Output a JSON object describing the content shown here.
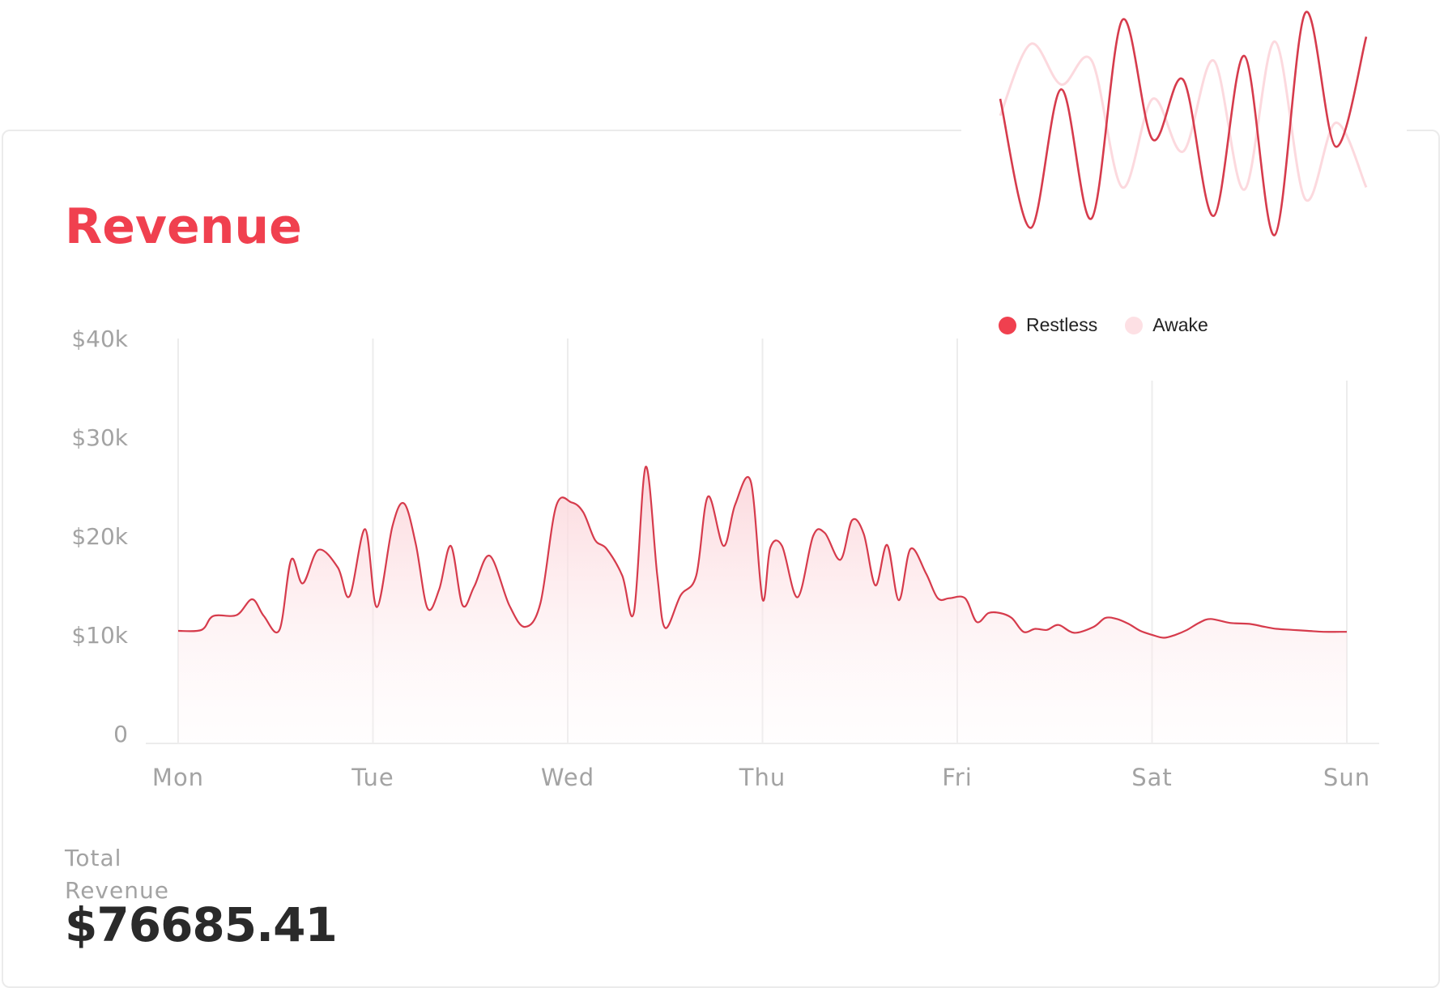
{
  "card": {
    "title": "Revenue"
  },
  "summary": {
    "label": "Total Revenue",
    "value": "$76685.41"
  },
  "colors": {
    "accent": "#f0404f",
    "line": "#d63b4c",
    "fill": "#fbd3d8",
    "awake": "#fcdde1",
    "grid": "#ececec",
    "text_muted": "#a3a3a3"
  },
  "sleep_chart": {
    "type": "line",
    "legend": [
      {
        "name": "Restless",
        "color": "#f0404f"
      },
      {
        "name": "Awake",
        "color": "#fde0e4"
      }
    ],
    "series": [
      {
        "name": "Restless",
        "values": [
          0.62,
          0.08,
          0.66,
          0.12,
          0.95,
          0.45,
          0.7,
          0.13,
          0.8,
          0.05,
          0.98,
          0.42,
          0.88
        ]
      },
      {
        "name": "Awake",
        "values": [
          0.55,
          0.85,
          0.68,
          0.78,
          0.25,
          0.62,
          0.4,
          0.78,
          0.24,
          0.86,
          0.2,
          0.52,
          0.25
        ]
      }
    ]
  },
  "chart_data": {
    "type": "area",
    "title": "Revenue",
    "xlabel": "",
    "ylabel": "",
    "x_labels": [
      "Mon",
      "Tue",
      "Wed",
      "Thu",
      "Fri",
      "Sat",
      "Sun"
    ],
    "y_ticks": [
      "$40k",
      "$30k",
      "$20k",
      "$10k",
      "0"
    ],
    "ylim": [
      0,
      41000
    ],
    "grid": "vertical",
    "x": [
      0,
      0.12,
      0.18,
      0.3,
      0.38,
      0.44,
      0.52,
      0.58,
      0.64,
      0.72,
      0.82,
      0.88,
      0.96,
      1.02,
      1.1,
      1.16,
      1.22,
      1.28,
      1.34,
      1.4,
      1.46,
      1.52,
      1.6,
      1.7,
      1.78,
      1.86,
      1.94,
      2.02,
      2.08,
      2.14,
      2.2,
      2.28,
      2.34,
      2.4,
      2.46,
      2.5,
      2.58,
      2.66,
      2.72,
      2.8,
      2.86,
      2.94,
      3.0,
      3.04,
      3.1,
      3.18,
      3.26,
      3.32,
      3.4,
      3.46,
      3.52,
      3.58,
      3.64,
      3.7,
      3.76,
      3.84,
      3.9,
      3.96,
      4.04,
      4.1,
      4.16,
      4.22,
      4.28,
      4.34,
      4.4,
      4.46,
      4.52,
      4.6,
      4.7,
      4.76,
      4.82,
      4.88,
      4.94,
      5.0,
      5.06,
      5.12,
      5.18,
      5.24,
      5.3,
      5.4,
      5.5,
      5.58,
      5.64,
      5.72,
      5.8,
      5.88,
      5.96,
      6.0
    ],
    "values": [
      11400,
      11500,
      12900,
      13000,
      14600,
      12900,
      11500,
      18600,
      16200,
      19600,
      17800,
      14900,
      21700,
      13800,
      22000,
      24300,
      20200,
      13700,
      15600,
      20000,
      14000,
      15900,
      19000,
      14000,
      11800,
      14200,
      24000,
      24400,
      23400,
      20600,
      19700,
      17000,
      13300,
      28000,
      17000,
      11700,
      15000,
      17000,
      25000,
      20000,
      24200,
      26500,
      14600,
      19800,
      20000,
      14800,
      21000,
      21300,
      18600,
      22600,
      21200,
      16000,
      20100,
      14500,
      19700,
      17200,
      14700,
      14700,
      14700,
      12300,
      13200,
      13200,
      12700,
      11300,
      11600,
      11500,
      12000,
      11200,
      11800,
      12700,
      12600,
      12100,
      11400,
      11000,
      10700,
      11000,
      11500,
      12200,
      12600,
      12200,
      12100,
      11800,
      11600,
      11500,
      11400,
      11300,
      11300,
      11300
    ]
  }
}
